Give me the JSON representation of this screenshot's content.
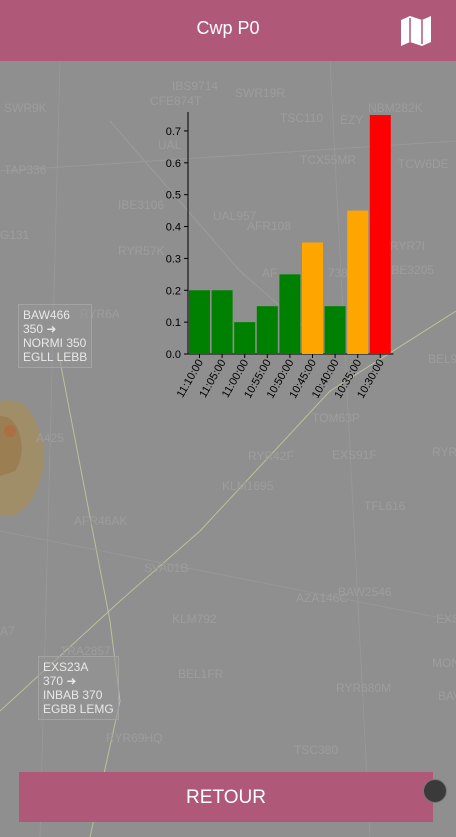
{
  "appbar": {
    "title": "Cwp P0",
    "map_icon": "map-icon"
  },
  "map": {
    "labels": [
      {
        "name": "map-label-ibs9714",
        "text": "IBS9714"
      },
      {
        "name": "map-label-swr19r",
        "text": "SWR19R"
      },
      {
        "name": "map-label-cfe874t",
        "text": "CFE874T"
      },
      {
        "name": "map-label-swr9k",
        "text": "SWR9K"
      },
      {
        "name": "map-label-tsc110",
        "text": "TSC110"
      },
      {
        "name": "map-label-ezy",
        "text": "EZY"
      },
      {
        "name": "map-label-nbm282k",
        "text": "NBM282K"
      },
      {
        "name": "map-label-ual",
        "text": "UAL"
      },
      {
        "name": "map-label-tap336",
        "text": "TAP336"
      },
      {
        "name": "map-label-tcx55mr",
        "text": "TCX55MR"
      },
      {
        "name": "map-label-tcw6de",
        "text": "TCW6DE"
      },
      {
        "name": "map-label-ibe3106",
        "text": "IBE3106"
      },
      {
        "name": "map-label-g131",
        "text": "G131"
      },
      {
        "name": "map-label-ual957",
        "text": "UAL957"
      },
      {
        "name": "map-label-afr108",
        "text": "AFR108"
      },
      {
        "name": "map-label-ryr57k",
        "text": "RYR57K"
      },
      {
        "name": "map-label-ryr7i",
        "text": "RYR7I"
      },
      {
        "name": "map-label-ibe3205",
        "text": "IBE3205"
      },
      {
        "name": "map-label-ryr6a",
        "text": "RYR6A"
      },
      {
        "name": "map-label-afr",
        "text": "AF"
      },
      {
        "name": "map-label-x738",
        "text": "738"
      },
      {
        "name": "map-label-bel9",
        "text": "BEL9"
      },
      {
        "name": "map-label-tom63p",
        "text": "TOM63P"
      },
      {
        "name": "map-label-ryr42f",
        "text": "RYR42F"
      },
      {
        "name": "map-label-exs91f",
        "text": "EXS91F"
      },
      {
        "name": "map-label-ryr",
        "text": "RYR"
      },
      {
        "name": "map-label-a425",
        "text": "A425"
      },
      {
        "name": "map-label-klm1695",
        "text": "KLM1695"
      },
      {
        "name": "map-label-tfl616",
        "text": "TFL616"
      },
      {
        "name": "map-label-afr46ak",
        "text": "AFR46AK"
      },
      {
        "name": "map-label-sva01b",
        "text": "SVA01B"
      },
      {
        "name": "map-label-baw2546",
        "text": "BAW2546"
      },
      {
        "name": "map-label-aza146c",
        "text": "AZA146C"
      },
      {
        "name": "map-label-klm792",
        "text": "KLM792"
      },
      {
        "name": "map-label-exs",
        "text": "EXS"
      },
      {
        "name": "map-label-a7",
        "text": "A7"
      },
      {
        "name": "map-label-tra2857",
        "text": "TRA2857"
      },
      {
        "name": "map-label-bel1fr",
        "text": "BEL1FR"
      },
      {
        "name": "map-label-mon",
        "text": "MON"
      },
      {
        "name": "map-label-ryr680m",
        "text": "RYR680M"
      },
      {
        "name": "map-label-bav",
        "text": "BAV"
      },
      {
        "name": "map-label-ryr69hq",
        "text": "RYR69HQ"
      },
      {
        "name": "map-label-tsc380",
        "text": "TSC380"
      }
    ],
    "tags": [
      {
        "name": "flight-tag-baw466",
        "lines": [
          "BAW466",
          "350 ➜",
          "NORMI 350",
          "EGLL  LEBB"
        ]
      },
      {
        "name": "flight-tag-exs23a",
        "lines": [
          "EXS23A",
          "370 ➜",
          "INBAB 370",
          "EGBB  LEMG"
        ]
      }
    ]
  },
  "chart_data": {
    "type": "bar",
    "categories": [
      "11:10:00",
      "11:05:00",
      "11:00:00",
      "10:55:00",
      "10:50:00",
      "10:45:00",
      "10:40:00",
      "10:35:00",
      "10:30:00"
    ],
    "values": [
      0.2,
      0.2,
      0.1,
      0.15,
      0.25,
      0.35,
      0.15,
      0.45,
      0.75
    ],
    "colors": [
      "#008000",
      "#008000",
      "#008000",
      "#008000",
      "#008000",
      "#ffa500",
      "#008000",
      "#ffa500",
      "#ff0000"
    ],
    "yticks": [
      "0.0",
      "0.1",
      "0.2",
      "0.3",
      "0.4",
      "0.5",
      "0.6",
      "0.7"
    ],
    "ylim": [
      0,
      0.75
    ],
    "title": "",
    "xlabel": "",
    "ylabel": ""
  },
  "footer": {
    "retour_label": "RETOUR"
  }
}
